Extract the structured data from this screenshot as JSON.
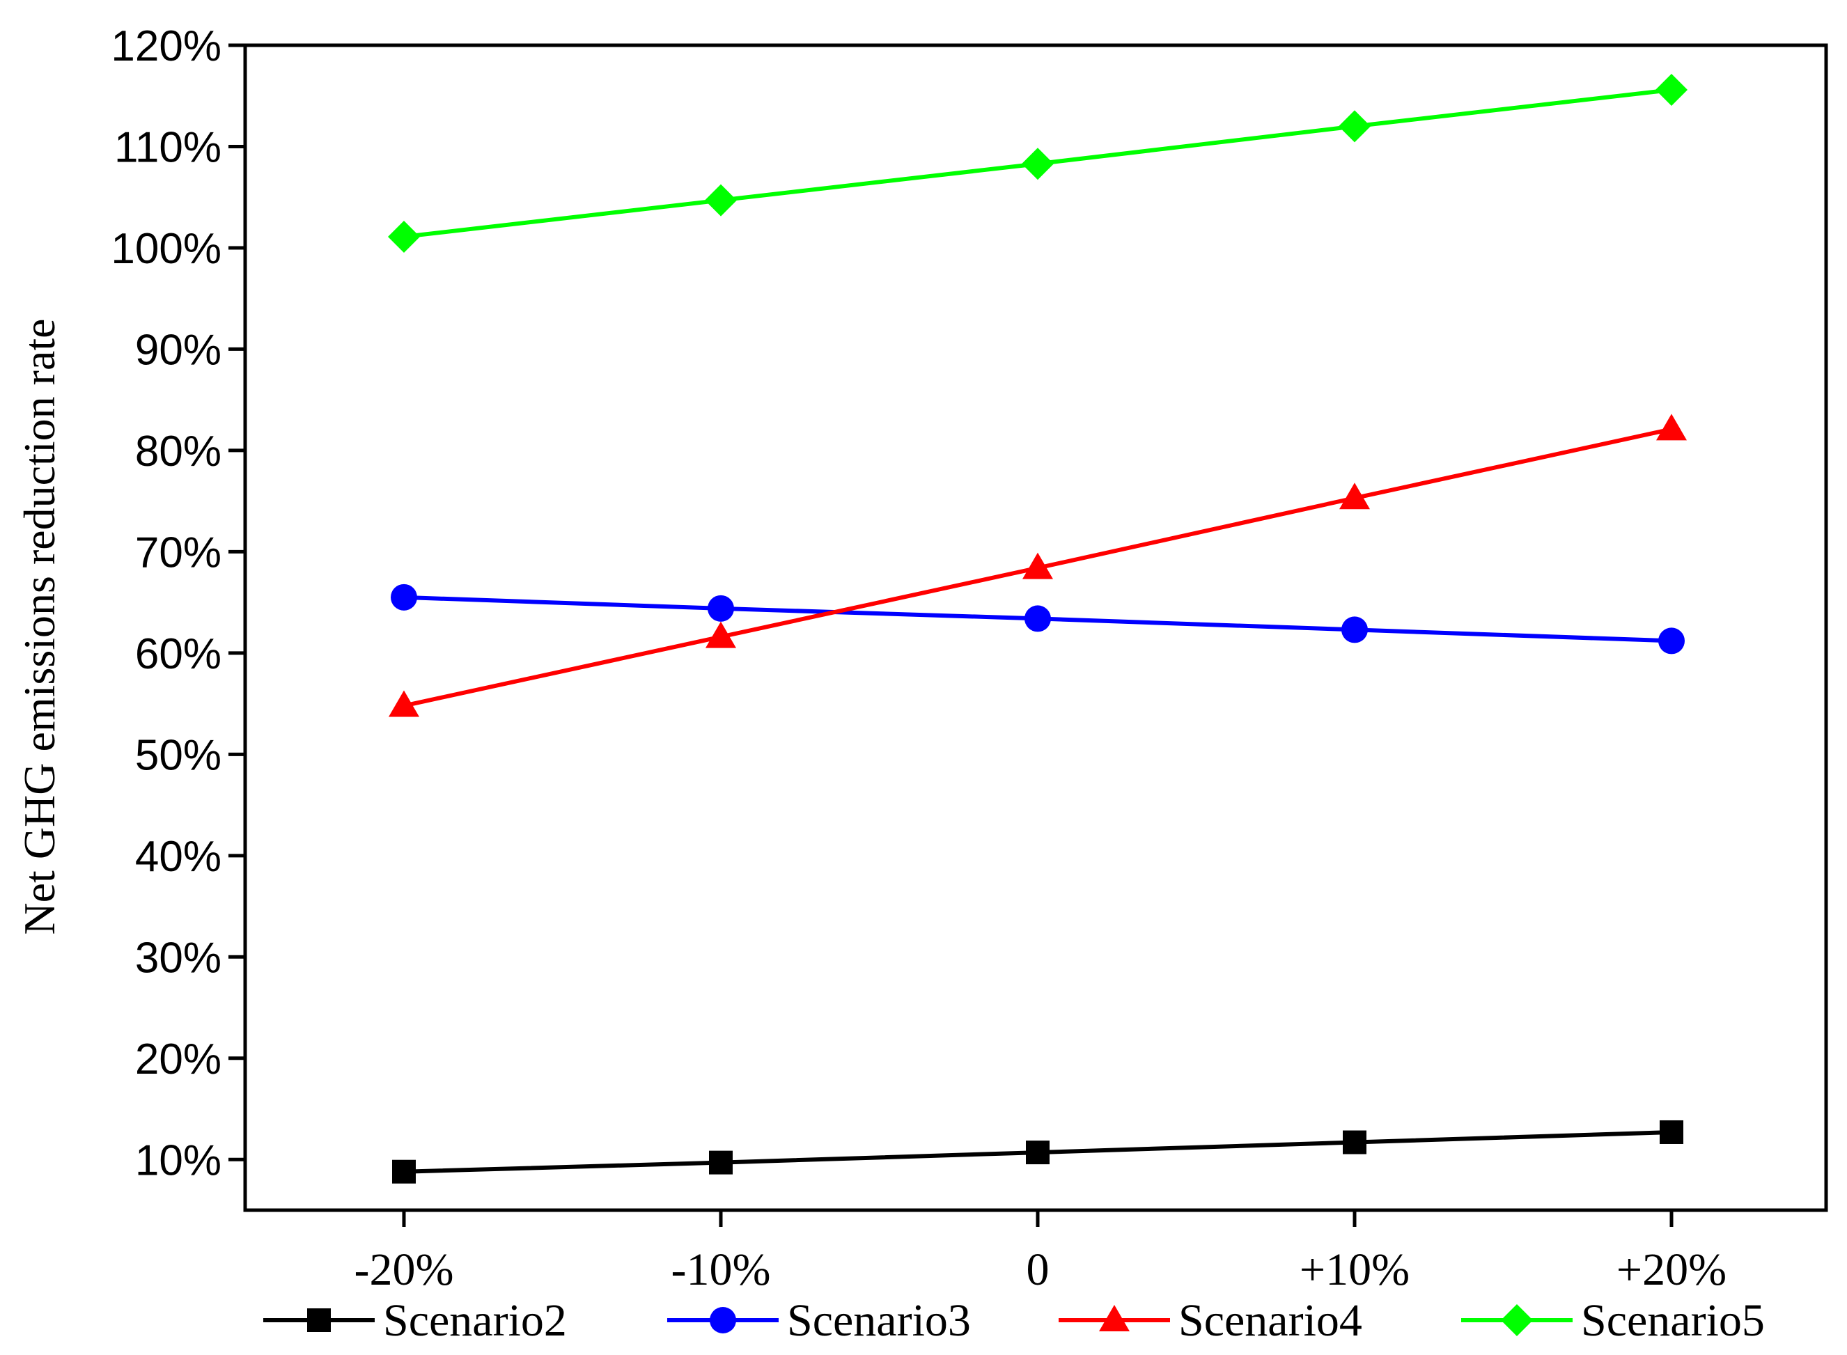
{
  "chart_data": {
    "type": "line",
    "title": "",
    "xlabel": "",
    "ylabel": "Net GHG emissions reduction rate",
    "categories": [
      "-20%",
      "-10%",
      "0",
      "+10%",
      "+20%"
    ],
    "ylim": [
      5,
      120
    ],
    "yticks": [
      10,
      20,
      30,
      40,
      50,
      60,
      70,
      80,
      90,
      100,
      110,
      120
    ],
    "ytick_labels": [
      "10%",
      "20%",
      "30%",
      "40%",
      "50%",
      "60%",
      "70%",
      "80%",
      "90%",
      "100%",
      "110%",
      "120%"
    ],
    "grid": false,
    "legend_position": "bottom",
    "series": [
      {
        "name": "Scenario2",
        "color": "#000000",
        "marker": "square",
        "values": [
          8.8,
          9.7,
          10.7,
          11.7,
          12.7
        ]
      },
      {
        "name": "Scenario3",
        "color": "#0000ff",
        "marker": "circle",
        "values": [
          65.5,
          64.4,
          63.4,
          62.3,
          61.2
        ]
      },
      {
        "name": "Scenario4",
        "color": "#ff0000",
        "marker": "triangle",
        "values": [
          54.8,
          61.6,
          68.4,
          75.3,
          82.1
        ]
      },
      {
        "name": "Scenario5",
        "color": "#00ff00",
        "marker": "diamond",
        "values": [
          101.1,
          104.7,
          108.3,
          112.0,
          115.6
        ]
      }
    ]
  }
}
